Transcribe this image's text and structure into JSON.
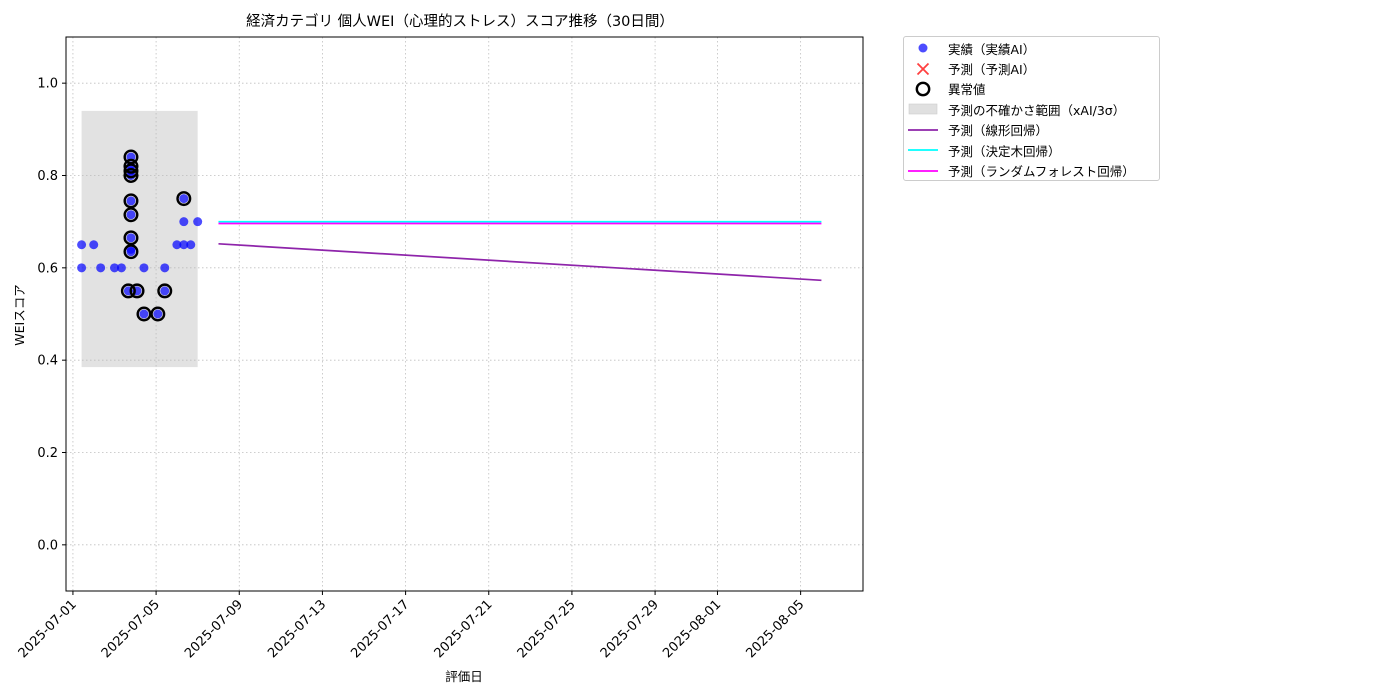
{
  "chart_data": {
    "type": "scatter",
    "title": "経済カテゴリ 個人WEI（心理的ストレス）スコア推移（30日間）",
    "xlabel": "評価日",
    "ylabel": "WEIスコア",
    "x_range": [
      "2025-06-30T16:00",
      "2025-08-08"
    ],
    "ylim": [
      -0.1,
      1.1
    ],
    "yticks": [
      0.0,
      0.2,
      0.4,
      0.6,
      0.8,
      1.0
    ],
    "xticks": [
      "2025-07-01",
      "2025-07-05",
      "2025-07-09",
      "2025-07-13",
      "2025-07-17",
      "2025-07-21",
      "2025-07-25",
      "2025-07-29",
      "2025-08-01",
      "2025-08-05"
    ],
    "grid": true,
    "legend_position": "outside-right",
    "series": [
      {
        "name": "実績（実績AI）",
        "kind": "scatter",
        "color": "#0000ff",
        "points": [
          [
            "2025-07-01T10:00",
            0.6
          ],
          [
            "2025-07-01T10:00",
            0.65
          ],
          [
            "2025-07-02T00:00",
            0.65
          ],
          [
            "2025-07-02T08:00",
            0.6
          ],
          [
            "2025-07-03T00:00",
            0.6
          ],
          [
            "2025-07-03T08:00",
            0.6
          ],
          [
            "2025-07-03T16:00",
            0.55
          ],
          [
            "2025-07-03T19:00",
            0.84
          ],
          [
            "2025-07-03T19:00",
            0.82
          ],
          [
            "2025-07-03T19:00",
            0.81
          ],
          [
            "2025-07-03T19:00",
            0.8
          ],
          [
            "2025-07-03T19:00",
            0.745
          ],
          [
            "2025-07-03T19:00",
            0.715
          ],
          [
            "2025-07-03T19:00",
            0.665
          ],
          [
            "2025-07-03T19:00",
            0.64
          ],
          [
            "2025-07-03T19:00",
            0.635
          ],
          [
            "2025-07-04T02:00",
            0.55
          ],
          [
            "2025-07-04T10:00",
            0.6
          ],
          [
            "2025-07-04T10:00",
            0.5
          ],
          [
            "2025-07-05T02:00",
            0.5
          ],
          [
            "2025-07-05T10:00",
            0.55
          ],
          [
            "2025-07-05T10:00",
            0.6
          ],
          [
            "2025-07-06T00:00",
            0.65
          ],
          [
            "2025-07-06T08:00",
            0.65
          ],
          [
            "2025-07-06T08:00",
            0.75
          ],
          [
            "2025-07-06T08:00",
            0.7
          ],
          [
            "2025-07-06T16:00",
            0.65
          ],
          [
            "2025-07-07T00:00",
            0.7
          ]
        ]
      },
      {
        "name": "予測（予測AI）",
        "kind": "scatter",
        "color": "#ff0000",
        "points": []
      },
      {
        "name": "異常値",
        "kind": "outlier",
        "color": "#000000",
        "points": [
          [
            "2025-07-03T16:00",
            0.55
          ],
          [
            "2025-07-03T19:00",
            0.84
          ],
          [
            "2025-07-03T19:00",
            0.82
          ],
          [
            "2025-07-03T19:00",
            0.81
          ],
          [
            "2025-07-03T19:00",
            0.8
          ],
          [
            "2025-07-03T19:00",
            0.745
          ],
          [
            "2025-07-03T19:00",
            0.715
          ],
          [
            "2025-07-03T19:00",
            0.665
          ],
          [
            "2025-07-03T19:00",
            0.635
          ],
          [
            "2025-07-04T02:00",
            0.55
          ],
          [
            "2025-07-04T10:00",
            0.5
          ],
          [
            "2025-07-05T02:00",
            0.5
          ],
          [
            "2025-07-05T10:00",
            0.55
          ],
          [
            "2025-07-06T08:00",
            0.75
          ]
        ]
      },
      {
        "name": "予測の不確かさ範囲（xAI/3σ）",
        "kind": "band",
        "color": "#bbbbbb",
        "x": [
          "2025-07-01T10:00",
          "2025-07-07T00:00"
        ],
        "y": [
          0.385,
          0.94
        ]
      },
      {
        "name": "予測（線形回帰）",
        "kind": "line",
        "color": "#8e24aa",
        "x": [
          "2025-07-08",
          "2025-08-06"
        ],
        "y": [
          0.652,
          0.573
        ]
      },
      {
        "name": "予測（決定木回帰）",
        "kind": "line",
        "color": "#00ffff",
        "x": [
          "2025-07-08",
          "2025-08-06"
        ],
        "y": [
          0.7,
          0.7
        ]
      },
      {
        "name": "予測（ランダムフォレスト回帰）",
        "kind": "line",
        "color": "#ff00ff",
        "x": [
          "2025-07-08",
          "2025-08-06"
        ],
        "y": [
          0.696,
          0.696
        ]
      }
    ]
  }
}
